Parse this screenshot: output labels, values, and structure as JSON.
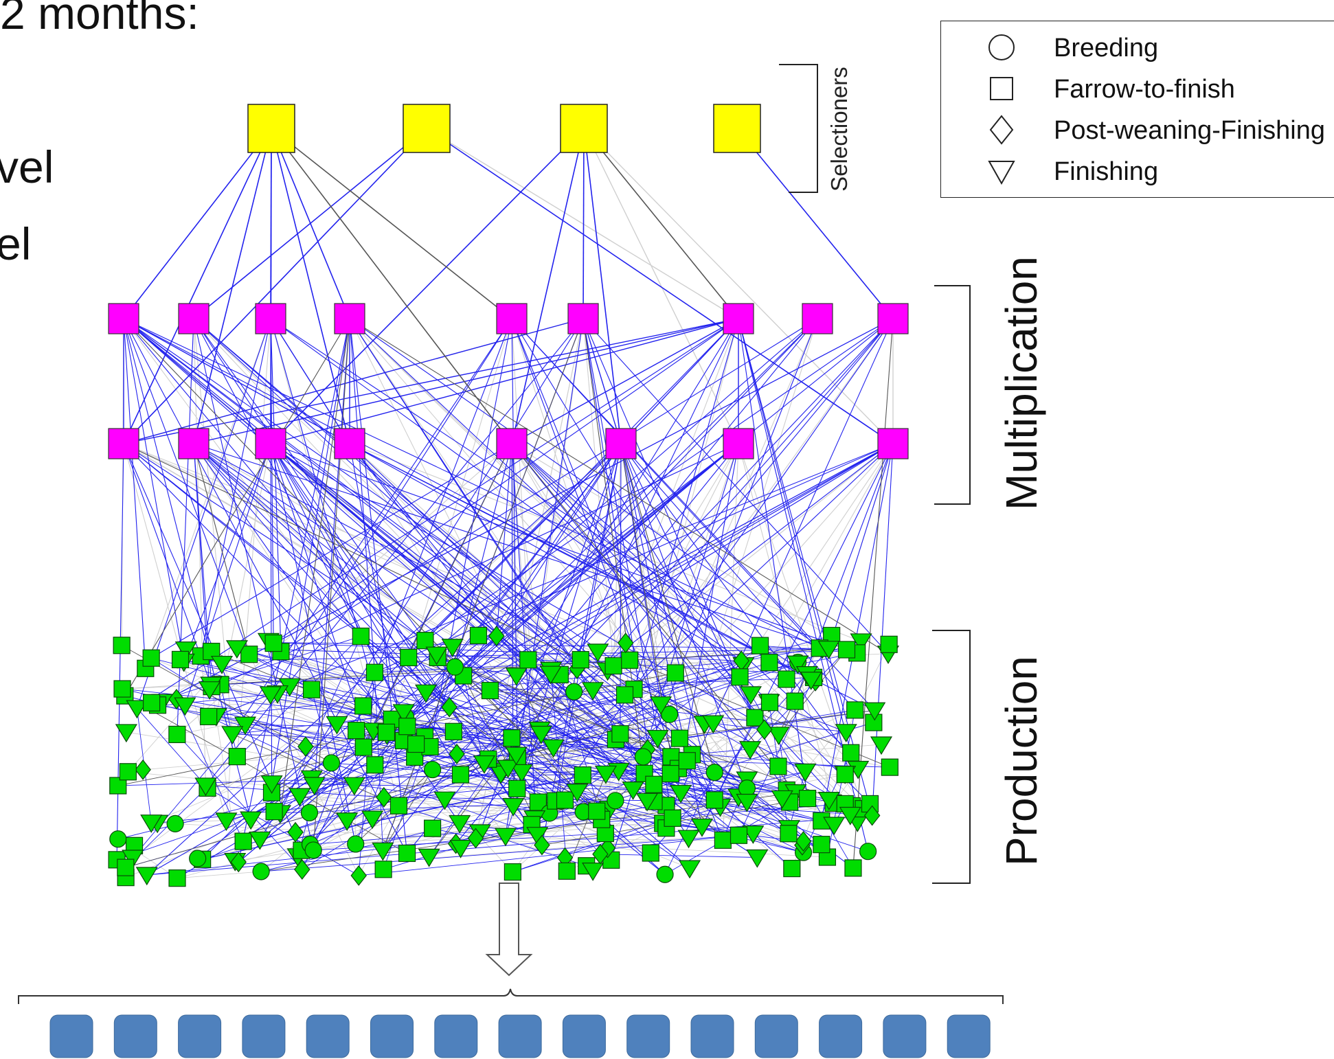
{
  "fragments": {
    "top": "2 months:",
    "mid1": "vel",
    "mid2": "el"
  },
  "levels": {
    "selectioners": "Selectioners",
    "multiplication": "Multiplication",
    "production": "Production"
  },
  "legend": {
    "items": [
      {
        "label": "Breeding",
        "icon": "circle-icon"
      },
      {
        "label": "Farrow-to-finish",
        "icon": "square-icon"
      },
      {
        "label": "Post-weaning-Finishing",
        "icon": "diamond-icon"
      },
      {
        "label": "Finishing",
        "icon": "triangle-down-icon"
      }
    ]
  },
  "colors": {
    "selectioner_node": "#ffff00",
    "multiplication_node": "#ff00ff",
    "production_node": "#00dd00",
    "edge_primary": "#2222ee",
    "edge_dark": "#555555",
    "edge_light": "#cfcfcf",
    "output_box": "#4f81bd"
  },
  "network": {
    "selectioner_count": 4,
    "multiplication_count": 17,
    "output_box_count": 15
  }
}
